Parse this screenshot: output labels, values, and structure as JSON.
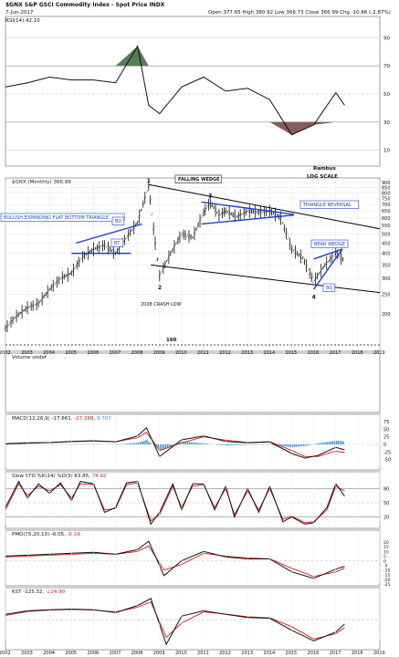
{
  "header": {
    "symbol_line": "$GNX S&P GSCI Commodity Index - Spot Price INDX",
    "date": "7-Jun-2017",
    "ohlc_line": "Open 377.65 High 380.92 Low 366.73 Close 366.99 Chg -10.86 (-2.87%)"
  },
  "watermark": {
    "line1": "Rambus",
    "line2": "LOG SCALE"
  },
  "colors": {
    "price": "#111111",
    "trend": "#000000",
    "blue": "#1f3fcf",
    "signal": "#d11a1a",
    "hist": "#3d8fcf",
    "rsi_fill_up": "#5a7a5a",
    "rsi_fill_dn": "#8a5a5a",
    "label_text": "#1f3fcf"
  },
  "chart_data": [
    {
      "type": "line",
      "name": "rsi",
      "label": "RSI(14) 42.10",
      "ylim": [
        0,
        100
      ],
      "levels": [
        10,
        30,
        70,
        90
      ],
      "x": [
        2002,
        2003,
        2004,
        2005,
        2006,
        2007,
        2008,
        2008.5,
        2009,
        2010,
        2011,
        2012,
        2013,
        2014,
        2015,
        2016,
        2017,
        2017.4
      ],
      "values": [
        55,
        58,
        62,
        60,
        60,
        58,
        84,
        42,
        36,
        55,
        62,
        52,
        54,
        46,
        21,
        28,
        51,
        42
      ]
    },
    {
      "type": "line",
      "name": "price",
      "label": "$GNX (Monthly) 366.99",
      "yscale": "log",
      "ylim": [
        140,
        920
      ],
      "yticks": [
        200,
        250,
        300,
        350,
        400,
        450,
        500,
        550,
        600,
        650,
        700,
        750,
        800,
        850,
        900
      ],
      "xticks": [
        2002,
        2003,
        2004,
        2005,
        2006,
        2007,
        2008,
        2009,
        2010,
        2011,
        2012,
        2013,
        2014,
        2015,
        2016,
        2017,
        2018,
        2019
      ],
      "x": [
        2002.0,
        2002.5,
        2003.0,
        2003.5,
        2004.0,
        2004.5,
        2005.0,
        2005.5,
        2006.0,
        2006.5,
        2007.0,
        2007.5,
        2008.0,
        2008.5,
        2008.8,
        2009.0,
        2009.5,
        2010.0,
        2010.5,
        2011.0,
        2011.3,
        2011.7,
        2012.0,
        2012.5,
        2013.0,
        2013.5,
        2014.0,
        2014.5,
        2015.0,
        2015.5,
        2016.0,
        2016.5,
        2017.0,
        2017.4
      ],
      "values": [
        170,
        195,
        215,
        225,
        265,
        300,
        320,
        385,
        420,
        440,
        400,
        480,
        570,
        870,
        450,
        310,
        400,
        500,
        480,
        640,
        720,
        620,
        650,
        610,
        650,
        640,
        650,
        600,
        420,
        380,
        290,
        350,
        400,
        367
      ],
      "level_labels": [
        {
          "text": "160",
          "value": 160
        }
      ],
      "annotations": {
        "pivots": [
          "1",
          "2",
          "3",
          "4"
        ],
        "falling_wedge": "FALLING WEDGE",
        "bullish": "BULLISH EXPANDING FLAT BOTTOM TRIANGLE",
        "bo1": "BO",
        "bt": "BT",
        "triangle_reversal": "TRIANGLE REVERSAL",
        "bear_wedge": "BEAR WEDGE",
        "bo2": "BO",
        "crash": "2008 CRASH LOW"
      }
    },
    {
      "type": "bar",
      "name": "volume",
      "label": "Volume undef",
      "values": []
    },
    {
      "type": "line",
      "name": "macd",
      "label": "MACD(12,26,9) -17.661, -27.388, 9.707",
      "ylim": [
        -75,
        75
      ],
      "yticks": [
        75,
        50,
        25,
        0,
        -25,
        -50
      ],
      "x": [
        2002,
        2003,
        2004,
        2005,
        2006,
        2007,
        2008,
        2008.4,
        2009,
        2010,
        2011,
        2012,
        2013,
        2014,
        2015,
        2015.6,
        2016.2,
        2017,
        2017.4
      ],
      "macd": [
        2,
        5,
        6,
        10,
        12,
        8,
        28,
        55,
        -40,
        15,
        28,
        10,
        5,
        8,
        -30,
        -45,
        -36,
        -10,
        -18
      ],
      "signal": [
        1,
        4,
        6,
        9,
        11,
        9,
        22,
        40,
        -20,
        5,
        25,
        14,
        6,
        9,
        -20,
        -40,
        -40,
        -22,
        -27
      ],
      "hist": [
        1,
        1,
        0,
        1,
        1,
        -1,
        6,
        15,
        -20,
        10,
        3,
        -4,
        -1,
        -1,
        -10,
        -5,
        4,
        12,
        10
      ]
    },
    {
      "type": "line",
      "name": "stochastic",
      "label": "Slow STO %K(14) %D(3) 63.85, 74.92",
      "ylim": [
        0,
        100
      ],
      "yticks": [
        80,
        50,
        20
      ],
      "x": [
        2002,
        2002.6,
        2003,
        2003.5,
        2004,
        2004.5,
        2005,
        2005.4,
        2006,
        2006.5,
        2007,
        2007.5,
        2008,
        2008.6,
        2009,
        2009.6,
        2010,
        2010.5,
        2011,
        2011.5,
        2012,
        2012.4,
        2013,
        2013.5,
        2014,
        2014.6,
        2015,
        2015.6,
        2016,
        2016.6,
        2017,
        2017.4
      ],
      "k": [
        40,
        95,
        60,
        90,
        70,
        92,
        55,
        95,
        90,
        30,
        40,
        92,
        95,
        5,
        30,
        90,
        35,
        90,
        90,
        35,
        85,
        20,
        80,
        30,
        85,
        10,
        20,
        5,
        8,
        40,
        90,
        64
      ],
      "d": [
        35,
        90,
        65,
        85,
        75,
        88,
        60,
        90,
        88,
        35,
        38,
        88,
        92,
        12,
        25,
        85,
        40,
        85,
        88,
        40,
        80,
        25,
        75,
        35,
        80,
        15,
        22,
        8,
        10,
        35,
        85,
        75
      ]
    },
    {
      "type": "line",
      "name": "pmo",
      "label": "PMO(35,20,10) -6.05, -8.29",
      "ylim": [
        -25,
        25
      ],
      "yticks": [
        20,
        15,
        10,
        5,
        0,
        -5,
        -10,
        -15,
        -20,
        -25
      ],
      "x": [
        2002,
        2003,
        2004,
        2005,
        2006,
        2007,
        2008,
        2008.5,
        2009.2,
        2010,
        2011,
        2012,
        2013,
        2014,
        2015,
        2016,
        2017,
        2017.4
      ],
      "pmo": [
        5,
        6,
        7,
        8,
        9,
        7,
        12,
        21,
        -16,
        0,
        10,
        4,
        2,
        2,
        -12,
        -19,
        -9,
        -6
      ],
      "signal": [
        4,
        5,
        6,
        7,
        8,
        7,
        10,
        16,
        -10,
        -4,
        8,
        5,
        3,
        2,
        -8,
        -17,
        -12,
        -8
      ]
    },
    {
      "type": "line",
      "name": "kst",
      "label": "KST -125.32, -224.90",
      "x": [
        2002,
        2003,
        2004,
        2005,
        2006,
        2007,
        2008,
        2008.6,
        2009.3,
        2010,
        2011,
        2012,
        2013,
        2014,
        2015,
        2016,
        2017,
        2017.4
      ],
      "kst": [
        150,
        250,
        280,
        300,
        280,
        200,
        400,
        600,
        -700,
        100,
        250,
        150,
        60,
        40,
        -300,
        -600,
        -350,
        -125
      ],
      "signal": [
        120,
        230,
        270,
        290,
        270,
        220,
        350,
        500,
        -500,
        -100,
        220,
        160,
        80,
        50,
        -200,
        -550,
        -400,
        -225
      ]
    }
  ]
}
